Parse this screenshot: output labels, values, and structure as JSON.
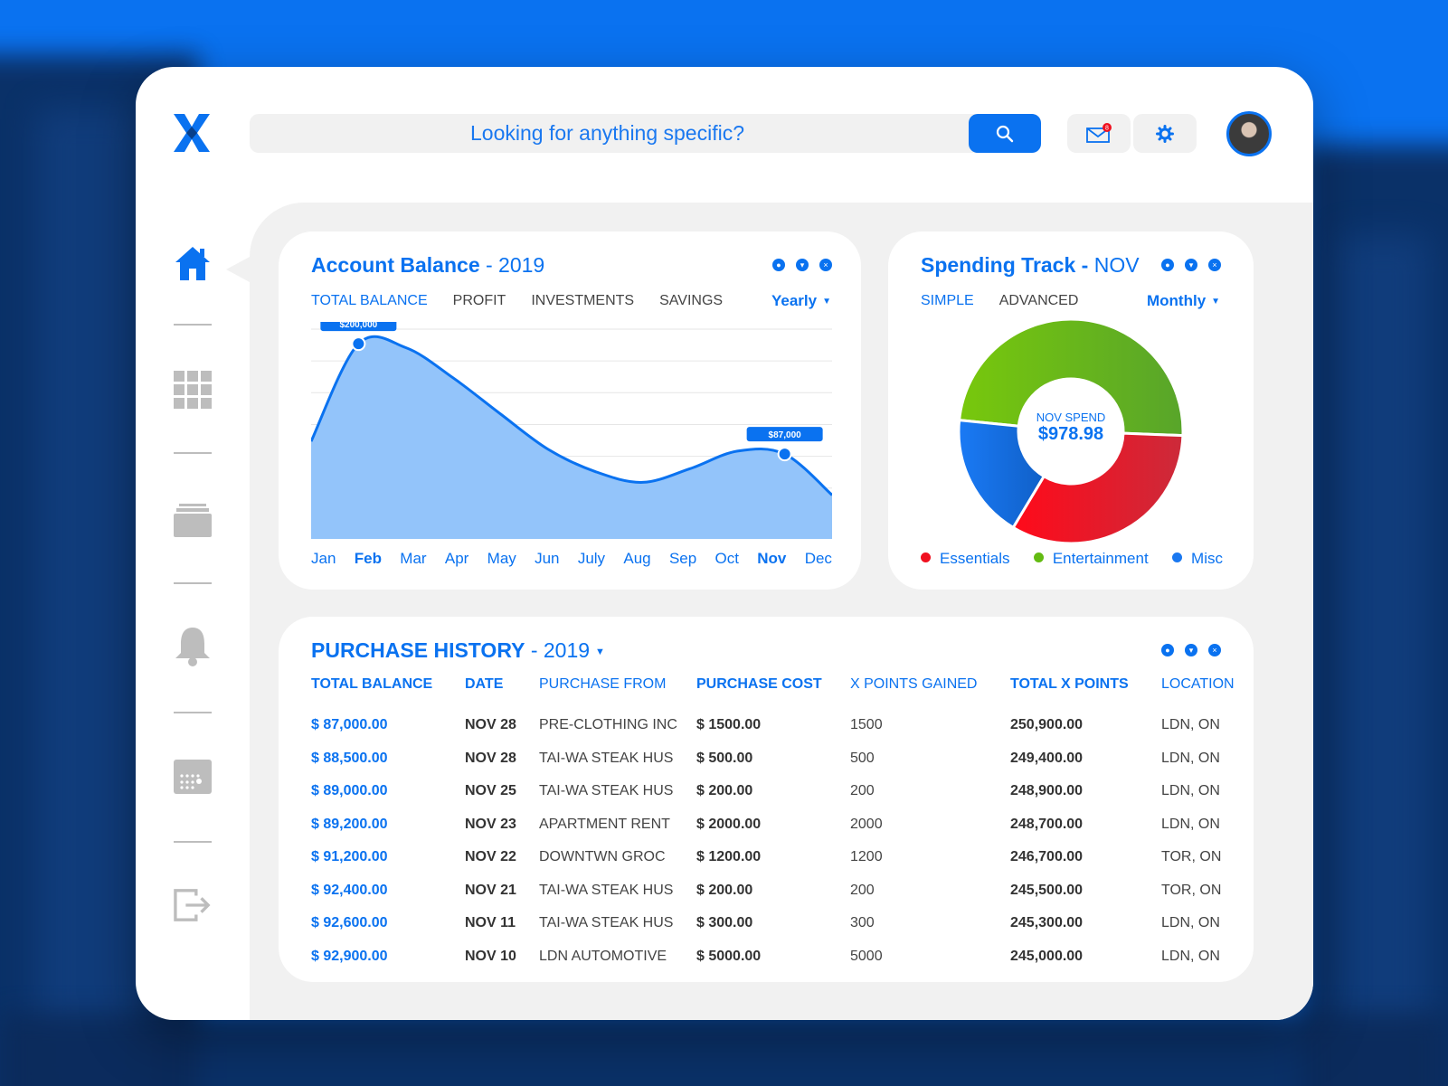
{
  "search": {
    "placeholder": "Looking for anything specific?"
  },
  "header": {
    "mail_badge": "8"
  },
  "account_balance": {
    "title": "Account Balance",
    "year": " - 2019",
    "tabs": [
      "TOTAL BALANCE",
      "PROFIT",
      "INVESTMENTS",
      "SAVINGS"
    ],
    "period": "Yearly",
    "months": [
      "Jan",
      "Feb",
      "Mar",
      "Apr",
      "May",
      "Jun",
      "July",
      "Aug",
      "Sep",
      "Oct",
      "Nov",
      "Dec"
    ],
    "annotations": [
      {
        "month": "Feb",
        "label": "$200,000"
      },
      {
        "month": "Nov",
        "label": "$87,000"
      }
    ]
  },
  "chart_data": [
    {
      "type": "area",
      "categories": [
        "Jan",
        "Feb",
        "Mar",
        "Apr",
        "May",
        "Jun",
        "July",
        "Aug",
        "Sep",
        "Oct",
        "Nov",
        "Dec"
      ],
      "values": [
        100000,
        200000,
        196000,
        165000,
        128000,
        92000,
        69000,
        58000,
        72000,
        90000,
        87000,
        45000
      ],
      "annotations": [
        "$200,000",
        "$87,000"
      ],
      "grid": true,
      "color": "#0a72f0"
    },
    {
      "type": "pie",
      "categories": [
        "Entertainment",
        "Essentials",
        "Misc"
      ],
      "values": [
        49,
        33,
        18
      ],
      "center_label": "NOV SPEND",
      "center_value": "$978.98",
      "colors": [
        "#63bb12",
        "#f0101f",
        "#1a78f0"
      ]
    }
  ],
  "spending": {
    "title": "Spending Track - ",
    "month": "NOV",
    "tabs": [
      "SIMPLE",
      "ADVANCED"
    ],
    "period": "Monthly",
    "center_label": "NOV SPEND",
    "center_value": "$978.98",
    "legend": [
      {
        "label": "Essentials",
        "color": "#f0101f"
      },
      {
        "label": "Entertainment",
        "color": "#63bb12"
      },
      {
        "label": "Misc",
        "color": "#1a78f0"
      }
    ]
  },
  "purchase_history": {
    "title": "PURCHASE HISTORY",
    "year": " - 2019",
    "columns": [
      "TOTAL BALANCE",
      "DATE",
      "PURCHASE FROM",
      "PURCHASE COST",
      "X POINTS GAINED",
      "TOTAL X POINTS",
      "LOCATION"
    ],
    "rows": [
      [
        "$ 87,000.00",
        "NOV 28",
        "PRE-CLOTHING INC",
        "$ 1500.00",
        "1500",
        "250,900.00",
        "LDN, ON"
      ],
      [
        "$ 88,500.00",
        "NOV 28",
        "TAI-WA STEAK HUS",
        "$ 500.00",
        "500",
        "249,400.00",
        "LDN, ON"
      ],
      [
        "$ 89,000.00",
        "NOV 25",
        "TAI-WA STEAK HUS",
        "$ 200.00",
        "200",
        "248,900.00",
        "LDN, ON"
      ],
      [
        "$ 89,200.00",
        "NOV 23",
        "APARTMENT RENT",
        "$ 2000.00",
        "2000",
        "248,700.00",
        "LDN, ON"
      ],
      [
        "$ 91,200.00",
        "NOV 22",
        "DOWNTWN GROC",
        "$ 1200.00",
        "1200",
        "246,700.00",
        "TOR, ON"
      ],
      [
        "$ 92,400.00",
        "NOV 21",
        "TAI-WA STEAK HUS",
        "$ 200.00",
        "200",
        "245,500.00",
        "TOR, ON"
      ],
      [
        "$ 92,600.00",
        "NOV 11",
        "TAI-WA STEAK HUS",
        "$ 300.00",
        "300",
        "245,300.00",
        "LDN, ON"
      ],
      [
        "$ 92,900.00",
        "NOV 10",
        "LDN AUTOMOTIVE",
        "$ 5000.00",
        "5000",
        "245,000.00",
        "LDN, ON"
      ]
    ]
  }
}
